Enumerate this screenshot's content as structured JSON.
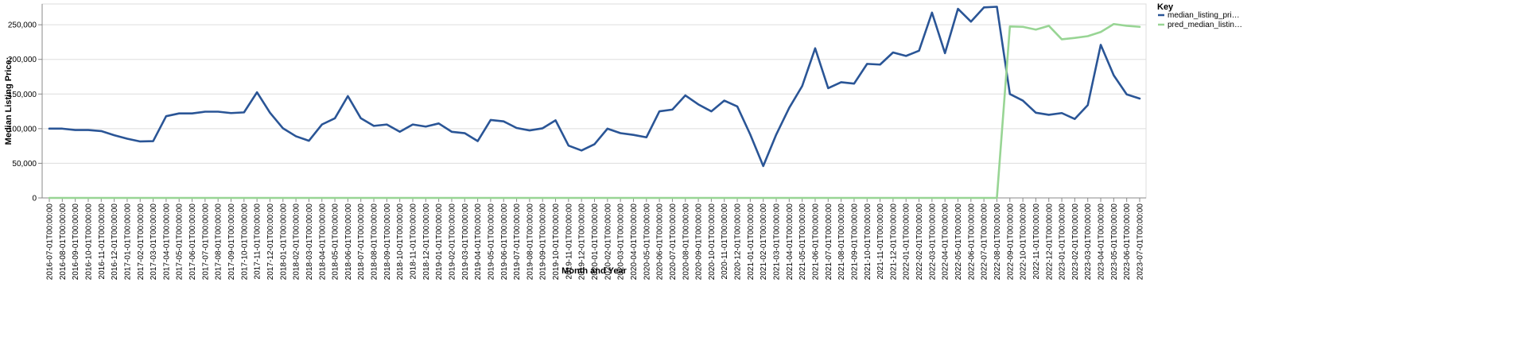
{
  "chart_data": {
    "type": "line",
    "xlabel": "Month and Year",
    "ylabel": "Median Listing Price:",
    "ylim": [
      0,
      280000
    ],
    "yticks": [
      0,
      50000,
      100000,
      150000,
      200000,
      250000
    ],
    "ytick_labels": [
      "0",
      "50,000",
      "100,000",
      "150,000",
      "200,000",
      "250,000"
    ],
    "grid": true,
    "legend": {
      "title": "Key",
      "placement": "top-right"
    },
    "x": [
      "2016-07-01T00:00:00",
      "2016-08-01T00:00:00",
      "2016-09-01T00:00:00",
      "2016-10-01T00:00:00",
      "2016-11-01T00:00:00",
      "2016-12-01T00:00:00",
      "2017-01-01T00:00:00",
      "2017-02-01T00:00:00",
      "2017-03-01T00:00:00",
      "2017-04-01T00:00:00",
      "2017-05-01T00:00:00",
      "2017-06-01T00:00:00",
      "2017-07-01T00:00:00",
      "2017-08-01T00:00:00",
      "2017-09-01T00:00:00",
      "2017-10-01T00:00:00",
      "2017-11-01T00:00:00",
      "2017-12-01T00:00:00",
      "2018-01-01T00:00:00",
      "2018-02-01T00:00:00",
      "2018-03-01T00:00:00",
      "2018-04-01T00:00:00",
      "2018-05-01T00:00:00",
      "2018-06-01T00:00:00",
      "2018-07-01T00:00:00",
      "2018-08-01T00:00:00",
      "2018-09-01T00:00:00",
      "2018-10-01T00:00:00",
      "2018-11-01T00:00:00",
      "2018-12-01T00:00:00",
      "2019-01-01T00:00:00",
      "2019-02-01T00:00:00",
      "2019-03-01T00:00:00",
      "2019-04-01T00:00:00",
      "2019-05-01T00:00:00",
      "2019-06-01T00:00:00",
      "2019-07-01T00:00:00",
      "2019-08-01T00:00:00",
      "2019-09-01T00:00:00",
      "2019-10-01T00:00:00",
      "2019-11-01T00:00:00",
      "2019-12-01T00:00:00",
      "2020-01-01T00:00:00",
      "2020-02-01T00:00:00",
      "2020-03-01T00:00:00",
      "2020-04-01T00:00:00",
      "2020-05-01T00:00:00",
      "2020-06-01T00:00:00",
      "2020-07-01T00:00:00",
      "2020-08-01T00:00:00",
      "2020-09-01T00:00:00",
      "2020-10-01T00:00:00",
      "2020-11-01T00:00:00",
      "2020-12-01T00:00:00",
      "2021-01-01T00:00:00",
      "2021-02-01T00:00:00",
      "2021-03-01T00:00:00",
      "2021-04-01T00:00:00",
      "2021-05-01T00:00:00",
      "2021-06-01T00:00:00",
      "2021-07-01T00:00:00",
      "2021-08-01T00:00:00",
      "2021-09-01T00:00:00",
      "2021-10-01T00:00:00",
      "2021-11-01T00:00:00",
      "2021-12-01T00:00:00",
      "2022-01-01T00:00:00",
      "2022-02-01T00:00:00",
      "2022-03-01T00:00:00",
      "2022-04-01T00:00:00",
      "2022-05-01T00:00:00",
      "2022-06-01T00:00:00",
      "2022-07-01T00:00:00",
      "2022-08-01T00:00:00",
      "2022-09-01T00:00:00",
      "2022-10-01T00:00:00",
      "2022-11-01T00:00:00",
      "2022-12-01T00:00:00",
      "2023-01-01T00:00:00",
      "2023-02-01T00:00:00",
      "2023-03-01T00:00:00",
      "2023-04-01T00:00:00",
      "2023-05-01T00:00:00",
      "2023-06-01T00:00:00",
      "2023-07-01T00:00:00"
    ],
    "series": [
      {
        "name": "median_listing_pri…",
        "color": "#2a5596",
        "values": [
          100000,
          100000,
          98000,
          98000,
          96500,
          90500,
          85500,
          81500,
          82000,
          118000,
          122000,
          122000,
          124500,
          124500,
          122500,
          123500,
          152500,
          123000,
          100500,
          89000,
          82500,
          106000,
          115000,
          147000,
          115000,
          104000,
          106000,
          95500,
          106000,
          103000,
          107500,
          95500,
          93500,
          82000,
          112500,
          110500,
          101000,
          97500,
          100500,
          112000,
          75500,
          68500,
          77500,
          100000,
          93500,
          91000,
          87500,
          125000,
          127500,
          148000,
          135000,
          125000,
          140500,
          132000,
          91500,
          46000,
          91500,
          130000,
          161500,
          216000,
          158500,
          167000,
          165000,
          193500,
          192500,
          210000,
          205000,
          212500,
          267500,
          209000,
          273000,
          254500,
          275000,
          276000,
          150000,
          140500,
          123000,
          120000,
          122500,
          114000,
          134000,
          221000,
          177000,
          149500,
          143500
        ]
      },
      {
        "name": "pred_median_listin…",
        "color": "#98d594",
        "values": [
          0,
          0,
          0,
          0,
          0,
          0,
          0,
          0,
          0,
          0,
          0,
          0,
          0,
          0,
          0,
          0,
          0,
          0,
          0,
          0,
          0,
          0,
          0,
          0,
          0,
          0,
          0,
          0,
          0,
          0,
          0,
          0,
          0,
          0,
          0,
          0,
          0,
          0,
          0,
          0,
          0,
          0,
          0,
          0,
          0,
          0,
          0,
          0,
          0,
          0,
          0,
          0,
          0,
          0,
          0,
          0,
          0,
          0,
          0,
          0,
          0,
          0,
          0,
          0,
          0,
          0,
          0,
          0,
          0,
          0,
          0,
          0,
          0,
          0,
          247500,
          247000,
          243000,
          248500,
          229000,
          231000,
          233500,
          239500,
          251000,
          248500,
          247000
        ]
      }
    ]
  }
}
